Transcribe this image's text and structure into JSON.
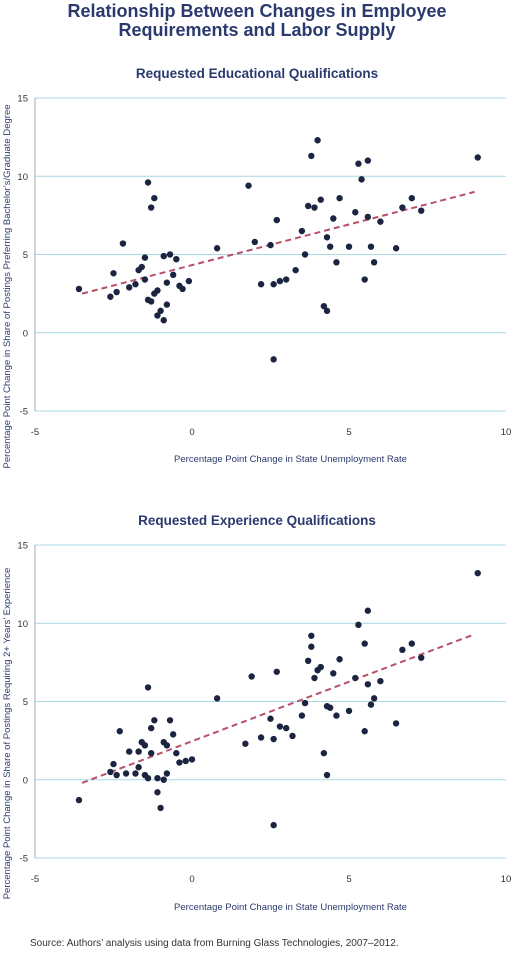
{
  "header": {
    "title_line1": "Relationship Between Changes in Employee",
    "title_line2": "Requirements and Labor Supply"
  },
  "source": "Source: Authors’ analysis using data from Burning Glass Technologies, 2007–2012.",
  "colors": {
    "title": "#2b3a6e",
    "point": "#1b2440",
    "trend": "#b8506a",
    "grid": "#a9d8e4"
  },
  "chart_data": [
    {
      "type": "scatter",
      "title": "Requested Educational Qualifications",
      "xlabel": "Percentage Point Change in State Unemployment Rate",
      "ylabel": "Percentage Point Change in Share of Postings Preferring Bachelor’s/Graduate Degree",
      "xlim": [
        -5,
        10
      ],
      "ylim": [
        -5,
        15
      ],
      "xticks": [
        -5,
        0,
        5,
        10
      ],
      "yticks": [
        -5,
        0,
        5,
        10,
        15
      ],
      "grid": "horizontal",
      "trendline": {
        "x": [
          -3.5,
          9
        ],
        "y": [
          2.5,
          9.0
        ]
      },
      "points": [
        [
          -3.6,
          2.8
        ],
        [
          -2.6,
          2.3
        ],
        [
          -2.5,
          3.8
        ],
        [
          -2.4,
          2.6
        ],
        [
          -2.2,
          5.7
        ],
        [
          -2.0,
          2.9
        ],
        [
          -1.8,
          3.1
        ],
        [
          -1.7,
          4.0
        ],
        [
          -1.6,
          4.2
        ],
        [
          -1.5,
          3.4
        ],
        [
          -1.5,
          4.8
        ],
        [
          -1.4,
          9.6
        ],
        [
          -1.3,
          8.0
        ],
        [
          -1.2,
          8.6
        ],
        [
          -1.4,
          2.1
        ],
        [
          -1.3,
          2.0
        ],
        [
          -1.2,
          2.5
        ],
        [
          -1.1,
          1.1
        ],
        [
          -1.0,
          1.4
        ],
        [
          -0.9,
          0.8
        ],
        [
          -0.8,
          1.8
        ],
        [
          -0.8,
          3.2
        ],
        [
          -0.7,
          5.0
        ],
        [
          -0.6,
          3.7
        ],
        [
          -0.5,
          4.7
        ],
        [
          -0.4,
          3.0
        ],
        [
          -0.3,
          2.8
        ],
        [
          -0.1,
          3.3
        ],
        [
          -0.9,
          4.9
        ],
        [
          -1.1,
          2.7
        ],
        [
          0.8,
          5.4
        ],
        [
          1.8,
          9.4
        ],
        [
          2.0,
          5.8
        ],
        [
          2.2,
          3.1
        ],
        [
          2.5,
          5.6
        ],
        [
          2.6,
          3.1
        ],
        [
          2.7,
          7.2
        ],
        [
          2.8,
          3.3
        ],
        [
          3.0,
          3.4
        ],
        [
          3.3,
          4.0
        ],
        [
          3.5,
          6.5
        ],
        [
          3.6,
          5.0
        ],
        [
          3.7,
          8.1
        ],
        [
          3.8,
          11.3
        ],
        [
          3.9,
          8.0
        ],
        [
          4.0,
          12.3
        ],
        [
          4.1,
          8.5
        ],
        [
          4.2,
          1.7
        ],
        [
          4.3,
          1.4
        ],
        [
          4.3,
          6.1
        ],
        [
          4.4,
          5.5
        ],
        [
          4.5,
          7.3
        ],
        [
          4.6,
          4.5
        ],
        [
          4.7,
          8.6
        ],
        [
          5.0,
          5.5
        ],
        [
          5.2,
          7.7
        ],
        [
          5.3,
          10.8
        ],
        [
          5.4,
          9.8
        ],
        [
          5.5,
          3.4
        ],
        [
          5.6,
          11.0
        ],
        [
          5.6,
          7.4
        ],
        [
          5.7,
          5.5
        ],
        [
          5.8,
          4.5
        ],
        [
          6.0,
          7.1
        ],
        [
          6.5,
          5.4
        ],
        [
          6.7,
          8.0
        ],
        [
          7.0,
          8.6
        ],
        [
          7.3,
          7.8
        ],
        [
          9.1,
          11.2
        ],
        [
          2.6,
          -1.7
        ]
      ]
    },
    {
      "type": "scatter",
      "title": "Requested Experience Qualifications",
      "xlabel": "Percentage Point Change in State Unemployment Rate",
      "ylabel": "Percentage Point Change in Share of Postings Requiring 2+ Years’ Experience",
      "xlim": [
        -5,
        10
      ],
      "ylim": [
        -5,
        15
      ],
      "xticks": [
        -5,
        0,
        5,
        10
      ],
      "yticks": [
        -5,
        0,
        5,
        10,
        15
      ],
      "grid": "horizontal",
      "trendline": {
        "x": [
          -3.5,
          9
        ],
        "y": [
          -0.2,
          9.3
        ]
      },
      "points": [
        [
          -3.6,
          -1.3
        ],
        [
          -2.6,
          0.5
        ],
        [
          -2.5,
          1.0
        ],
        [
          -2.4,
          0.3
        ],
        [
          -2.3,
          3.1
        ],
        [
          -2.1,
          0.4
        ],
        [
          -2.0,
          1.8
        ],
        [
          -1.8,
          0.4
        ],
        [
          -1.7,
          0.8
        ],
        [
          -1.7,
          1.8
        ],
        [
          -1.6,
          2.4
        ],
        [
          -1.5,
          2.2
        ],
        [
          -1.5,
          0.3
        ],
        [
          -1.4,
          5.9
        ],
        [
          -1.4,
          0.1
        ],
        [
          -1.3,
          3.3
        ],
        [
          -1.3,
          1.7
        ],
        [
          -1.2,
          3.8
        ],
        [
          -1.1,
          0.1
        ],
        [
          -1.1,
          -0.8
        ],
        [
          -1.0,
          -1.8
        ],
        [
          -0.9,
          0.0
        ],
        [
          -0.9,
          2.4
        ],
        [
          -0.8,
          0.4
        ],
        [
          -0.8,
          2.2
        ],
        [
          -0.7,
          3.8
        ],
        [
          -0.6,
          2.9
        ],
        [
          -0.5,
          1.7
        ],
        [
          -0.4,
          1.1
        ],
        [
          -0.2,
          1.2
        ],
        [
          0.0,
          1.3
        ],
        [
          0.8,
          5.2
        ],
        [
          1.7,
          2.3
        ],
        [
          1.9,
          6.6
        ],
        [
          2.2,
          2.7
        ],
        [
          2.5,
          3.9
        ],
        [
          2.6,
          2.6
        ],
        [
          2.7,
          6.9
        ],
        [
          2.8,
          3.4
        ],
        [
          3.0,
          3.3
        ],
        [
          3.2,
          2.8
        ],
        [
          3.5,
          4.1
        ],
        [
          3.6,
          4.9
        ],
        [
          3.7,
          7.6
        ],
        [
          3.8,
          9.2
        ],
        [
          3.8,
          8.5
        ],
        [
          3.9,
          6.5
        ],
        [
          4.0,
          7.0
        ],
        [
          4.1,
          7.2
        ],
        [
          4.2,
          1.7
        ],
        [
          4.3,
          0.3
        ],
        [
          4.3,
          4.7
        ],
        [
          4.4,
          4.6
        ],
        [
          4.5,
          6.8
        ],
        [
          4.6,
          4.1
        ],
        [
          4.7,
          7.7
        ],
        [
          5.0,
          4.4
        ],
        [
          5.2,
          6.5
        ],
        [
          5.3,
          9.9
        ],
        [
          5.5,
          8.7
        ],
        [
          5.5,
          3.1
        ],
        [
          5.6,
          10.8
        ],
        [
          5.6,
          6.1
        ],
        [
          5.7,
          4.8
        ],
        [
          5.8,
          5.2
        ],
        [
          6.0,
          6.3
        ],
        [
          6.5,
          3.6
        ],
        [
          6.7,
          8.3
        ],
        [
          7.0,
          8.7
        ],
        [
          7.3,
          7.8
        ],
        [
          9.1,
          13.2
        ],
        [
          2.6,
          -2.9
        ]
      ]
    }
  ]
}
